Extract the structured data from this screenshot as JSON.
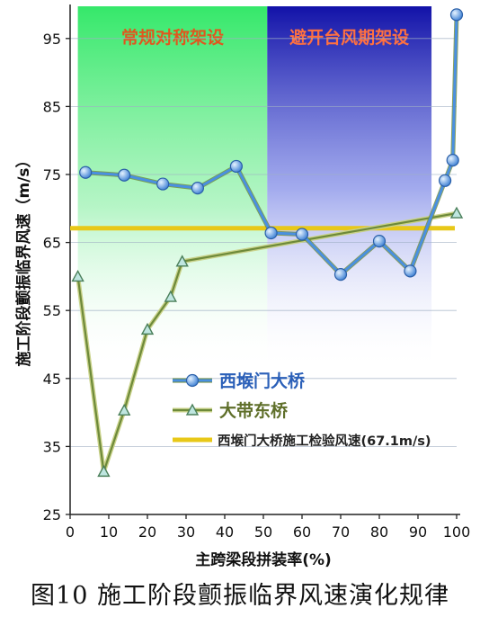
{
  "caption": "图10  施工阶段颤振临界风速演化规律",
  "chart_data": {
    "type": "line",
    "ylabel": "施工阶段颤振临界风速（m/s）",
    "xlabel": "主跨梁段拼装率(%)",
    "xlim": [
      0,
      100
    ],
    "ylim": [
      25,
      100
    ],
    "x_ticks": [
      0,
      10,
      20,
      30,
      40,
      50,
      60,
      70,
      80,
      90,
      100
    ],
    "y_ticks": [
      25,
      35,
      45,
      55,
      65,
      75,
      85,
      95
    ],
    "regions": [
      {
        "label": "常规对称架设",
        "x_range": [
          2,
          51
        ],
        "color": "#3fea73",
        "text_color": "#e0561e"
      },
      {
        "label": "避开台风期架设",
        "x_range": [
          51,
          93.5
        ],
        "color": "#1a1ab8",
        "text_color": "#ff7040"
      }
    ],
    "series": [
      {
        "name": "西堠门大桥",
        "color": "#4a90e0",
        "x": [
          4,
          14,
          24,
          33,
          43,
          52,
          60,
          70,
          80,
          88,
          97,
          99,
          100
        ],
        "y": [
          75.3,
          74.9,
          73.6,
          73,
          76.2,
          66.4,
          66.2,
          60.3,
          65.2,
          60.8,
          74.1,
          77.1,
          98.5
        ]
      },
      {
        "name": "大带东桥",
        "color": "#6e8a3a",
        "x": [
          2,
          8.7,
          14,
          20,
          26,
          29,
          100
        ],
        "y": [
          60,
          31.3,
          40.3,
          52.2,
          57,
          62.2,
          69.3
        ]
      }
    ],
    "reference_line": {
      "name": "西堠门大桥施工检验风速(67.1m/s)",
      "value": 67.1,
      "color": "#e8c818"
    },
    "legend_placement": "lower-center",
    "grid": {
      "y": true,
      "x": false
    }
  }
}
